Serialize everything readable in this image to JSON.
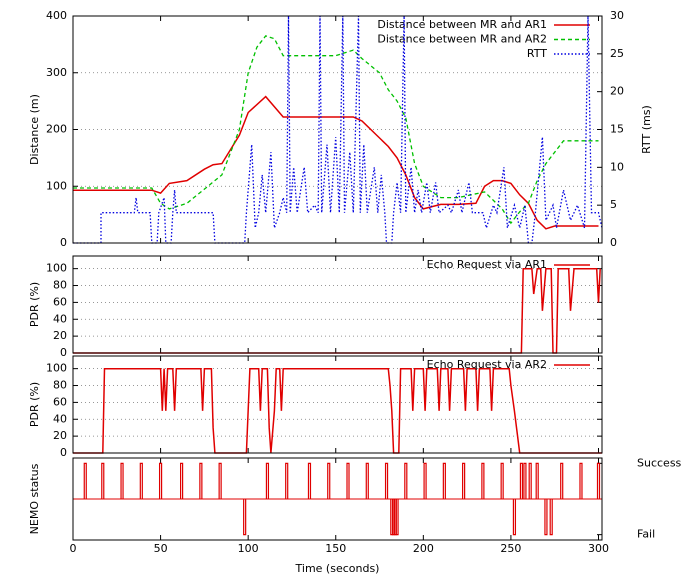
{
  "chart_data": [
    {
      "type": "line",
      "ylabel": "Distance (m)",
      "y2label": "RTT (ms)",
      "xlim": [
        0,
        302
      ],
      "ylim": [
        0,
        400
      ],
      "yticks": [
        0,
        100,
        200,
        300,
        400
      ],
      "y2lim": [
        0,
        30
      ],
      "y2ticks": [
        0,
        5,
        10,
        15,
        20,
        25,
        30
      ],
      "grid": true,
      "legend": "top-right",
      "series": [
        {
          "name": "Distance between MR and AR1",
          "color": "#e00000",
          "style": "solid",
          "x": [
            0,
            45,
            50,
            55,
            65,
            75,
            80,
            85,
            95,
            100,
            110,
            120,
            140,
            160,
            165,
            170,
            180,
            185,
            190,
            195,
            200,
            210,
            220,
            230,
            235,
            240,
            245,
            250,
            255,
            260,
            265,
            270,
            275,
            300
          ],
          "values": [
            93,
            93,
            88,
            105,
            110,
            130,
            138,
            140,
            190,
            230,
            258,
            222,
            222,
            222,
            215,
            200,
            170,
            150,
            120,
            80,
            60,
            68,
            68,
            70,
            100,
            110,
            110,
            105,
            85,
            70,
            40,
            25,
            30,
            30
          ]
        },
        {
          "name": "Distance between MR and AR2",
          "color": "#00c000",
          "style": "dashed",
          "x": [
            0,
            45,
            50,
            55,
            65,
            75,
            85,
            95,
            100,
            105,
            110,
            115,
            120,
            130,
            150,
            160,
            165,
            175,
            180,
            185,
            190,
            195,
            200,
            210,
            220,
            235,
            240,
            245,
            250,
            255,
            260,
            265,
            270,
            275,
            280,
            300
          ],
          "values": [
            97,
            97,
            70,
            60,
            70,
            95,
            120,
            200,
            300,
            345,
            365,
            360,
            330,
            330,
            330,
            340,
            325,
            300,
            270,
            250,
            220,
            140,
            100,
            80,
            80,
            90,
            75,
            60,
            35,
            55,
            70,
            110,
            140,
            160,
            180,
            180
          ]
        },
        {
          "name": "RTT",
          "color": "#0000e0",
          "style": "dotted",
          "axis": "y2",
          "x": [
            0,
            16,
            16,
            35,
            36,
            37,
            44,
            45,
            48,
            49,
            52,
            53,
            56,
            57,
            58,
            59,
            80,
            81,
            98,
            99,
            102,
            104,
            106,
            108,
            110,
            113,
            115,
            118,
            120,
            122,
            123,
            124,
            126,
            128,
            132,
            134,
            138,
            140,
            141,
            142,
            145,
            147,
            150,
            152,
            154,
            155,
            158,
            160,
            163,
            164,
            166,
            168,
            172,
            174,
            176,
            178,
            179,
            182,
            183,
            185,
            187,
            189,
            190,
            193,
            195,
            197,
            199,
            202,
            204,
            207,
            209,
            214,
            216,
            220,
            222,
            226,
            228,
            234,
            236,
            240,
            242,
            246,
            248,
            252,
            255,
            258,
            260,
            262,
            264,
            268,
            270,
            274,
            276,
            280,
            284,
            288,
            292,
            294,
            296,
            300,
            302
          ],
          "values": [
            0,
            0,
            4,
            4,
            6,
            4,
            4,
            0,
            0,
            4,
            6,
            0,
            0,
            4,
            7,
            4,
            4,
            0,
            0,
            4,
            13,
            2,
            4,
            9,
            4,
            12,
            2,
            4,
            6,
            4,
            30,
            4,
            10,
            4,
            10,
            4,
            5,
            4,
            30,
            4,
            13,
            4,
            14,
            4,
            30,
            4,
            12,
            4,
            30,
            4,
            13,
            4,
            10,
            4,
            9,
            4,
            0,
            0,
            4,
            8,
            4,
            30,
            4,
            10,
            4,
            7,
            4,
            8,
            4,
            8,
            4,
            5,
            4,
            7,
            4,
            8,
            4,
            4,
            2,
            5,
            4,
            10,
            2,
            5,
            2,
            5,
            0,
            0,
            4,
            14,
            3,
            5,
            2,
            7,
            3,
            5,
            2,
            30,
            4,
            4,
            2
          ]
        }
      ]
    },
    {
      "type": "line",
      "ylabel": "PDR (%)",
      "xlim": [
        0,
        302
      ],
      "ylim": [
        0,
        115
      ],
      "yticks": [
        0,
        20,
        40,
        60,
        80,
        100
      ],
      "grid": true,
      "legend": "top-right",
      "series": [
        {
          "name": "Echo Request via AR1",
          "color": "#e00000",
          "style": "solid",
          "x": [
            0,
            256,
            257,
            262,
            263,
            265,
            267,
            268,
            270,
            273,
            274,
            276,
            277,
            283,
            284,
            286,
            299,
            300,
            301
          ],
          "values": [
            0,
            0,
            100,
            100,
            70,
            100,
            100,
            50,
            100,
            100,
            0,
            0,
            100,
            100,
            50,
            100,
            100,
            60,
            100
          ]
        }
      ]
    },
    {
      "type": "line",
      "ylabel": "PDR (%)",
      "xlim": [
        0,
        302
      ],
      "ylim": [
        0,
        115
      ],
      "yticks": [
        0,
        20,
        40,
        60,
        80,
        100
      ],
      "grid": true,
      "legend": "top-right",
      "series": [
        {
          "name": "Echo Request via AR2",
          "color": "#e00000",
          "style": "solid",
          "x": [
            0,
            17,
            18,
            50,
            51,
            52,
            53,
            54,
            57,
            58,
            59,
            73,
            74,
            75,
            79,
            80,
            81,
            99,
            101,
            106,
            107,
            108,
            111,
            112,
            113,
            115,
            116,
            118,
            119,
            120,
            180,
            181,
            182,
            183,
            186,
            187,
            193,
            194,
            195,
            200,
            201,
            202,
            208,
            209,
            210,
            214,
            215,
            216,
            223,
            224,
            225,
            230,
            231,
            232,
            238,
            239,
            240,
            249,
            250,
            252,
            255,
            302
          ],
          "values": [
            0,
            0,
            100,
            100,
            50,
            100,
            50,
            100,
            100,
            50,
            100,
            100,
            50,
            100,
            100,
            30,
            0,
            0,
            100,
            100,
            50,
            100,
            100,
            30,
            0,
            50,
            100,
            100,
            50,
            100,
            100,
            80,
            50,
            0,
            0,
            100,
            100,
            50,
            100,
            100,
            50,
            100,
            100,
            50,
            100,
            100,
            50,
            100,
            100,
            50,
            100,
            100,
            50,
            100,
            100,
            50,
            100,
            100,
            80,
            50,
            0,
            0
          ]
        }
      ]
    },
    {
      "type": "impulse",
      "ylabel": "NEMO status",
      "xlabel": "Time (seconds)",
      "xlim": [
        0,
        302
      ],
      "xticks": [
        0,
        50,
        100,
        150,
        200,
        250,
        300
      ],
      "ylim": [
        -1.15,
        1.15
      ],
      "yticks": [
        {
          "value": 1,
          "label": "Success"
        },
        {
          "value": -1,
          "label": "Fail"
        }
      ],
      "color": "#e00000",
      "x": [
        7,
        17,
        28,
        39,
        50,
        62,
        73,
        84,
        98,
        111,
        122,
        135,
        146,
        157,
        168,
        179,
        182,
        183,
        184,
        185,
        190,
        201,
        212,
        223,
        234,
        245,
        252,
        256,
        258,
        261,
        265,
        270,
        273,
        279,
        290,
        300
      ],
      "values": [
        1,
        1,
        1,
        1,
        1,
        1,
        1,
        1,
        -1,
        1,
        1,
        1,
        1,
        1,
        1,
        1,
        -1,
        -1,
        -1,
        -1,
        1,
        1,
        1,
        1,
        1,
        1,
        -1,
        1,
        1,
        1,
        1,
        -1,
        -1,
        1,
        1,
        1
      ]
    }
  ]
}
